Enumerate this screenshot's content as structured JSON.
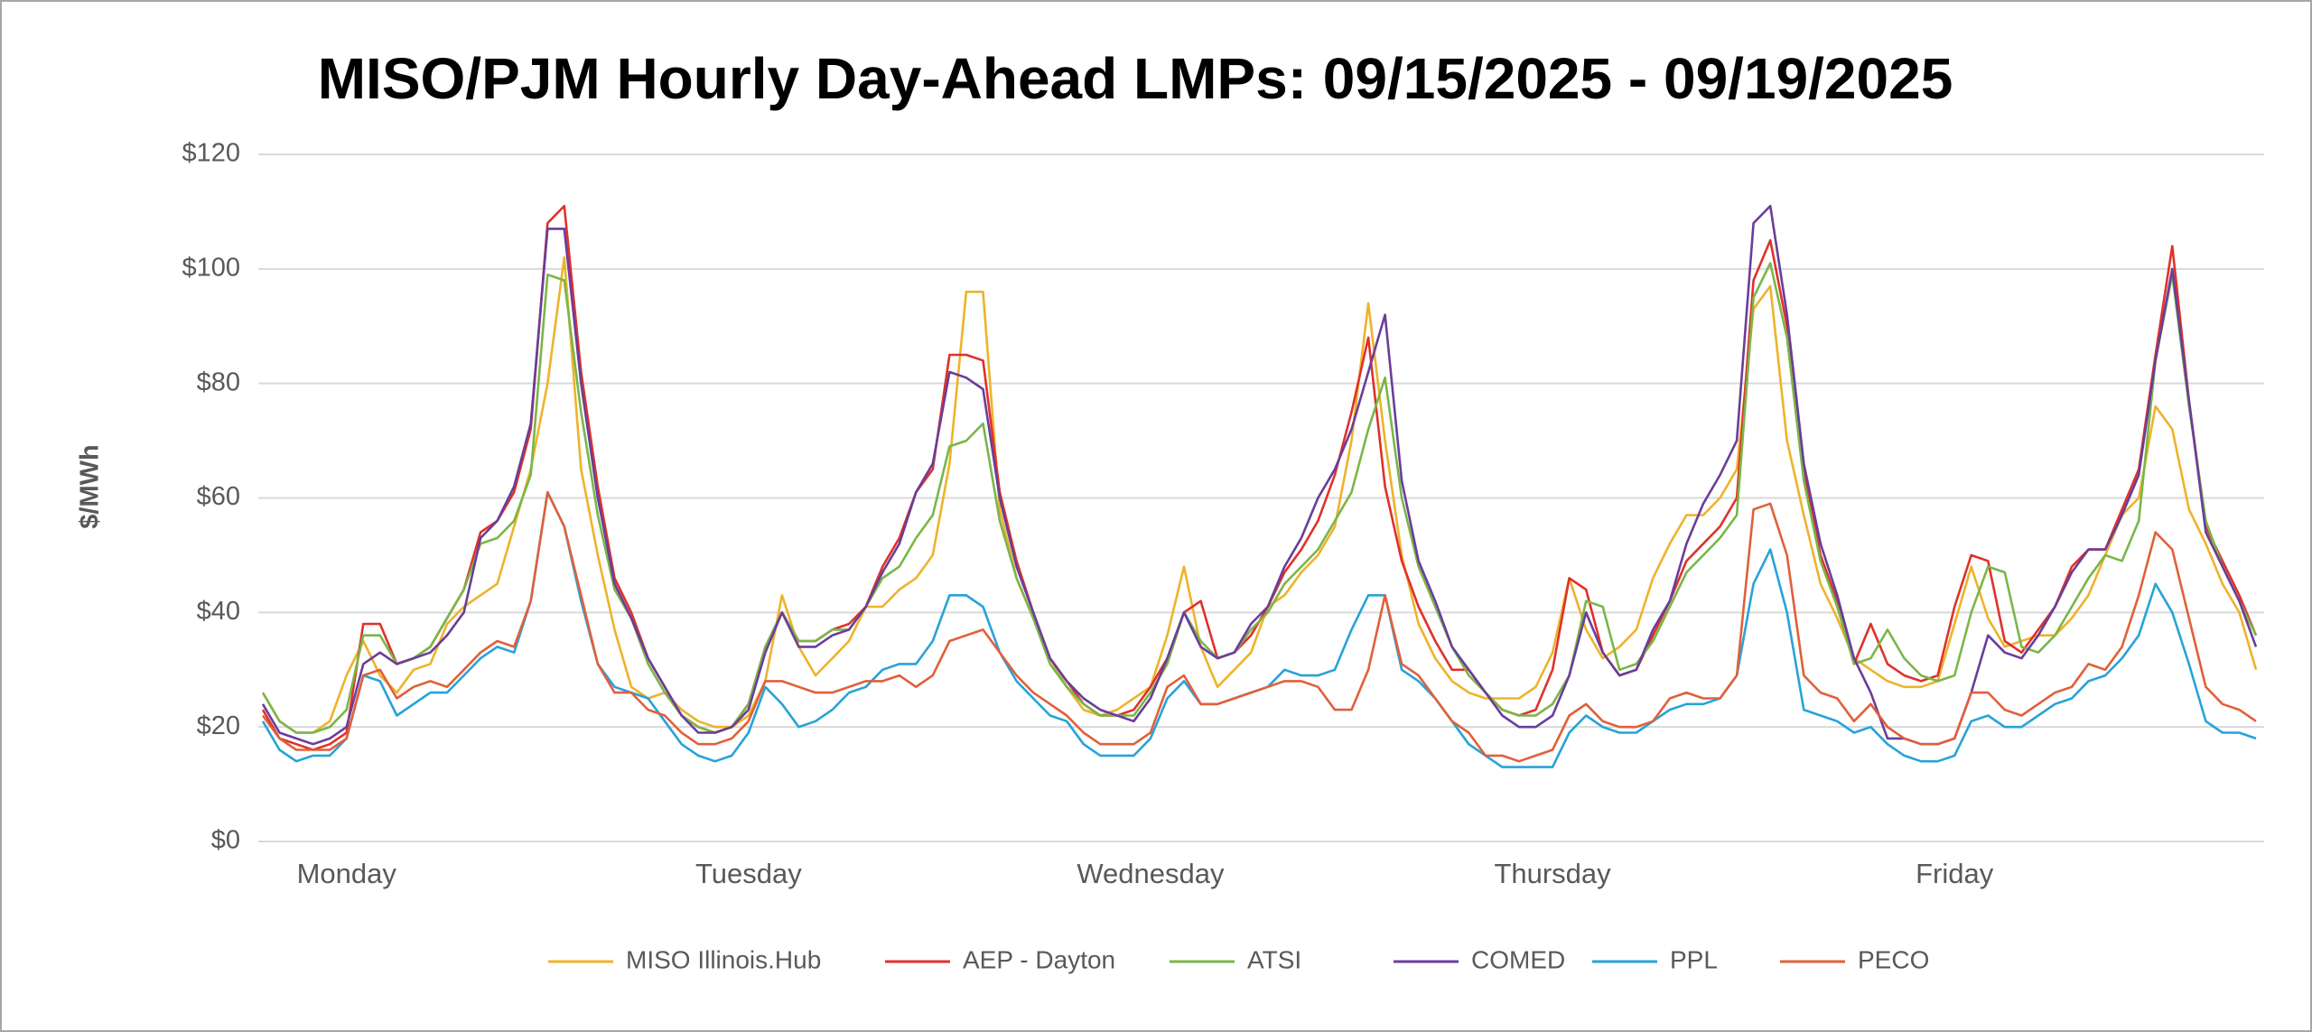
{
  "chart_data": {
    "type": "line",
    "title": "MISO/PJM Hourly Day-Ahead LMPs: 09/15/2025 - 09/19/2025",
    "ylabel": "$/MWh",
    "categories": [
      null,
      null,
      null,
      null,
      null,
      "Monday",
      null,
      null,
      null,
      null,
      null,
      null,
      null,
      null,
      null,
      null,
      null,
      null,
      null,
      null,
      null,
      null,
      null,
      null,
      null,
      null,
      null,
      null,
      null,
      "Tuesday",
      null,
      null,
      null,
      null,
      null,
      null,
      null,
      null,
      null,
      null,
      null,
      null,
      null,
      null,
      null,
      null,
      null,
      null,
      null,
      null,
      null,
      null,
      null,
      "Wednesday",
      null,
      null,
      null,
      null,
      null,
      null,
      null,
      null,
      null,
      null,
      null,
      null,
      null,
      null,
      null,
      null,
      null,
      null,
      null,
      null,
      null,
      null,
      null,
      "Thursday",
      null,
      null,
      null,
      null,
      null,
      null,
      null,
      null,
      null,
      null,
      null,
      null,
      null,
      null,
      null,
      null,
      null,
      null,
      null,
      null,
      null,
      null,
      null,
      "Friday",
      null,
      null,
      null,
      null,
      null,
      null,
      null,
      null,
      null,
      null,
      null,
      null,
      null,
      null,
      null,
      null,
      null,
      null
    ],
    "ylim": [
      0,
      120
    ],
    "yticks": [
      {
        "value": 0,
        "label": "$0"
      },
      {
        "value": 20,
        "label": "$20"
      },
      {
        "value": 40,
        "label": "$40"
      },
      {
        "value": 60,
        "label": "$60"
      },
      {
        "value": 80,
        "label": "$80"
      },
      {
        "value": 100,
        "label": "$100"
      },
      {
        "value": 120,
        "label": "$120"
      }
    ],
    "grid": true,
    "legend": "bottom",
    "series": [
      {
        "name": "MISO Illinois.Hub",
        "color": "#eeb32b",
        "values": [
          26,
          21,
          19,
          19,
          21,
          29,
          35,
          29,
          26,
          30,
          31,
          38,
          41,
          43,
          45,
          55,
          65,
          80,
          102,
          65,
          50,
          37,
          27,
          25,
          26,
          23,
          21,
          20,
          20,
          22,
          28,
          43,
          34,
          29,
          32,
          35,
          41,
          41,
          44,
          46,
          50,
          66,
          96,
          96,
          58,
          46,
          39,
          32,
          27,
          23,
          22,
          23,
          25,
          27,
          36,
          48,
          34,
          27,
          30,
          33,
          41,
          43,
          47,
          50,
          55,
          70,
          94,
          70,
          50,
          38,
          32,
          28,
          26,
          25,
          25,
          25,
          27,
          33,
          46,
          37,
          32,
          34,
          37,
          46,
          52,
          57,
          57,
          60,
          65,
          93,
          97,
          70,
          57,
          45,
          39,
          32,
          30,
          28,
          27,
          27,
          28,
          38,
          48,
          39,
          34,
          35,
          36,
          36,
          39,
          43,
          50,
          57,
          60,
          76,
          72,
          58,
          52,
          45,
          40,
          30
        ]
      },
      {
        "name": "AEP - Dayton",
        "color": "#e0312b",
        "values": [
          23,
          18,
          17,
          16,
          17,
          19,
          38,
          38,
          31,
          32,
          34,
          39,
          44,
          54,
          56,
          61,
          72,
          108,
          111,
          82,
          62,
          46,
          40,
          32,
          27,
          22,
          20,
          19,
          20,
          24,
          34,
          40,
          35,
          35,
          37,
          38,
          41,
          48,
          53,
          61,
          65,
          85,
          85,
          84,
          61,
          49,
          40,
          32,
          28,
          24,
          22,
          22,
          23,
          27,
          32,
          40,
          42,
          32,
          33,
          36,
          41,
          47,
          51,
          56,
          64,
          75,
          88,
          62,
          49,
          41,
          35,
          30,
          30,
          26,
          23,
          22,
          23,
          30,
          46,
          44,
          33,
          29,
          30,
          36,
          42,
          49,
          52,
          55,
          60,
          98,
          105,
          90,
          65,
          50,
          42,
          31,
          38,
          31,
          29,
          28,
          29,
          41,
          50,
          49,
          35,
          33,
          37,
          41,
          48,
          51,
          51,
          58,
          65,
          85,
          104,
          77,
          55,
          49,
          43,
          36
        ]
      },
      {
        "name": "ATSI",
        "color": "#7ab648",
        "values": [
          26,
          21,
          19,
          19,
          20,
          23,
          36,
          36,
          31,
          32,
          34,
          39,
          44,
          52,
          53,
          56,
          64,
          99,
          98,
          75,
          57,
          44,
          39,
          31,
          26,
          22,
          20,
          19,
          20,
          24,
          34,
          40,
          35,
          35,
          37,
          37,
          41,
          46,
          48,
          53,
          57,
          69,
          70,
          73,
          56,
          46,
          39,
          31,
          27,
          24,
          22,
          22,
          22,
          26,
          31,
          40,
          35,
          32,
          33,
          37,
          40,
          45,
          48,
          51,
          56,
          61,
          72,
          81,
          60,
          48,
          41,
          34,
          29,
          26,
          23,
          22,
          22,
          24,
          29,
          42,
          41,
          30,
          31,
          35,
          41,
          47,
          50,
          53,
          57,
          95,
          101,
          88,
          63,
          49,
          41,
          31,
          32,
          37,
          32,
          29,
          28,
          29,
          40,
          48,
          47,
          34,
          33,
          36,
          41,
          46,
          50,
          49,
          56,
          84,
          99,
          76,
          56,
          48,
          42,
          36
        ]
      },
      {
        "name": "COMED",
        "color": "#6a3d9a",
        "values": [
          24,
          19,
          18,
          17,
          18,
          20,
          31,
          33,
          31,
          32,
          33,
          36,
          40,
          53,
          56,
          62,
          73,
          107,
          107,
          80,
          60,
          45,
          39,
          32,
          27,
          22,
          19,
          19,
          20,
          23,
          33,
          40,
          34,
          34,
          36,
          37,
          41,
          47,
          52,
          61,
          66,
          82,
          81,
          79,
          60,
          48,
          40,
          32,
          28,
          25,
          23,
          22,
          21,
          25,
          32,
          40,
          34,
          32,
          33,
          38,
          41,
          48,
          53,
          60,
          65,
          72,
          82,
          92,
          63,
          49,
          42,
          34,
          30,
          26,
          22,
          20,
          20,
          22,
          29,
          40,
          33,
          29,
          30,
          37,
          42,
          52,
          59,
          64,
          70,
          108,
          111,
          92,
          66,
          52,
          43,
          32,
          26,
          18,
          18,
          17,
          17,
          18,
          26,
          36,
          33,
          32,
          36,
          41,
          47,
          51,
          51,
          57,
          64,
          84,
          100,
          77,
          54,
          48,
          42,
          34
        ]
      },
      {
        "name": "PPL",
        "color": "#27a3d8",
        "values": [
          21,
          16,
          14,
          15,
          15,
          18,
          29,
          28,
          22,
          24,
          26,
          26,
          29,
          32,
          34,
          33,
          42,
          61,
          55,
          42,
          31,
          27,
          26,
          25,
          21,
          17,
          15,
          14,
          15,
          19,
          27,
          24,
          20,
          21,
          23,
          26,
          27,
          30,
          31,
          31,
          35,
          43,
          43,
          41,
          33,
          28,
          25,
          22,
          21,
          17,
          15,
          15,
          15,
          18,
          25,
          28,
          24,
          24,
          25,
          26,
          27,
          30,
          29,
          29,
          30,
          37,
          43,
          43,
          30,
          28,
          25,
          21,
          17,
          15,
          13,
          13,
          13,
          13,
          19,
          22,
          20,
          19,
          19,
          21,
          23,
          24,
          24,
          25,
          29,
          45,
          51,
          40,
          23,
          22,
          21,
          19,
          20,
          17,
          15,
          14,
          14,
          15,
          21,
          22,
          20,
          20,
          22,
          24,
          25,
          28,
          29,
          32,
          36,
          45,
          40,
          31,
          21,
          19,
          19,
          18
        ]
      },
      {
        "name": "PECO",
        "color": "#e0603a",
        "values": [
          22,
          18,
          16,
          16,
          16,
          18,
          29,
          30,
          25,
          27,
          28,
          27,
          30,
          33,
          35,
          34,
          42,
          61,
          55,
          43,
          31,
          26,
          26,
          23,
          22,
          19,
          17,
          17,
          18,
          21,
          28,
          28,
          27,
          26,
          26,
          27,
          28,
          28,
          29,
          27,
          29,
          35,
          36,
          37,
          33,
          29,
          26,
          24,
          22,
          19,
          17,
          17,
          17,
          19,
          27,
          29,
          24,
          24,
          25,
          26,
          27,
          28,
          28,
          27,
          23,
          23,
          30,
          43,
          31,
          29,
          25,
          21,
          19,
          15,
          15,
          14,
          15,
          16,
          22,
          24,
          21,
          20,
          20,
          21,
          25,
          26,
          25,
          25,
          29,
          58,
          59,
          50,
          29,
          26,
          25,
          21,
          24,
          20,
          18,
          17,
          17,
          18,
          26,
          26,
          23,
          22,
          24,
          26,
          27,
          31,
          30,
          34,
          43,
          54,
          51,
          39,
          27,
          24,
          23,
          21
        ]
      }
    ]
  }
}
